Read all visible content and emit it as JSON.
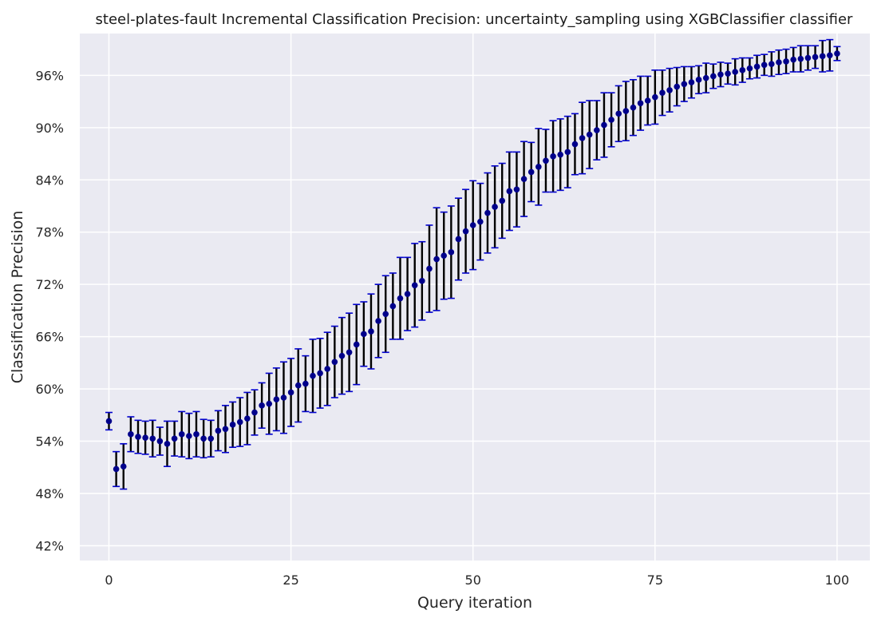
{
  "chart_data": {
    "type": "scatter",
    "title": "steel-plates-fault Incremental Classification Precision: uncertainty_sampling using XGBClassifier classifier",
    "xlabel": "Query iteration",
    "ylabel": "Classification Precision",
    "xlim": [
      -4,
      104.5
    ],
    "ylim": [
      40.3,
      100.8
    ],
    "xticks": [
      0,
      25,
      50,
      75,
      100
    ],
    "yticks": [
      42,
      48,
      54,
      60,
      66,
      72,
      78,
      84,
      90,
      96
    ],
    "ytick_format": "percent",
    "grid": true,
    "colors": {
      "background": "#eaeaf2",
      "grid": "#ffffff",
      "marker": "#00008b",
      "error_bar": "#000000",
      "cap": "#0000cd"
    },
    "series": [
      {
        "name": "precision",
        "x": [
          0,
          1,
          2,
          3,
          4,
          5,
          6,
          7,
          8,
          9,
          10,
          11,
          12,
          13,
          14,
          15,
          16,
          17,
          18,
          19,
          20,
          21,
          22,
          23,
          24,
          25,
          26,
          27,
          28,
          29,
          30,
          31,
          32,
          33,
          34,
          35,
          36,
          37,
          38,
          39,
          40,
          41,
          42,
          43,
          44,
          45,
          46,
          47,
          48,
          49,
          50,
          51,
          52,
          53,
          54,
          55,
          56,
          57,
          58,
          59,
          60,
          61,
          62,
          63,
          64,
          65,
          66,
          67,
          68,
          69,
          70,
          71,
          72,
          73,
          74,
          75,
          76,
          77,
          78,
          79,
          80,
          81,
          82,
          83,
          84,
          85,
          86,
          87,
          88,
          89,
          90,
          91,
          92,
          93,
          94,
          95,
          96,
          97,
          98,
          99,
          100
        ],
        "y": [
          56.3,
          50.8,
          51.1,
          54.8,
          54.5,
          54.4,
          54.3,
          54.0,
          53.7,
          54.3,
          54.8,
          54.6,
          54.8,
          54.3,
          54.3,
          55.2,
          55.4,
          55.9,
          56.2,
          56.6,
          57.3,
          58.1,
          58.3,
          58.8,
          59.0,
          59.6,
          60.4,
          60.6,
          61.5,
          61.8,
          62.3,
          63.1,
          63.8,
          64.2,
          65.1,
          66.3,
          66.6,
          67.8,
          68.6,
          69.5,
          70.4,
          70.9,
          71.9,
          72.4,
          73.8,
          74.9,
          75.3,
          75.7,
          77.2,
          78.1,
          78.8,
          79.2,
          80.2,
          80.9,
          81.6,
          82.7,
          82.9,
          84.1,
          84.9,
          85.5,
          86.2,
          86.7,
          86.9,
          87.2,
          88.1,
          88.8,
          89.2,
          89.7,
          90.3,
          90.9,
          91.6,
          91.9,
          92.3,
          92.8,
          93.1,
          93.5,
          94.0,
          94.3,
          94.7,
          95.0,
          95.2,
          95.5,
          95.7,
          95.9,
          96.1,
          96.2,
          96.4,
          96.6,
          96.8,
          97.0,
          97.2,
          97.3,
          97.5,
          97.6,
          97.8,
          97.9,
          98.0,
          98.1,
          98.2,
          98.3,
          98.5
        ],
        "error": [
          1.0,
          2.0,
          2.6,
          2.0,
          1.9,
          1.9,
          2.1,
          1.6,
          2.6,
          2.0,
          2.6,
          2.6,
          2.6,
          2.2,
          2.1,
          2.3,
          2.7,
          2.6,
          2.8,
          3.0,
          2.6,
          2.6,
          3.5,
          3.6,
          4.1,
          3.9,
          4.2,
          3.2,
          4.2,
          4.0,
          4.2,
          4.1,
          4.4,
          4.5,
          4.6,
          3.7,
          4.3,
          4.2,
          4.4,
          3.8,
          4.7,
          4.2,
          4.8,
          4.5,
          5.0,
          5.9,
          5.0,
          5.3,
          4.7,
          4.8,
          5.1,
          4.4,
          4.6,
          4.7,
          4.3,
          4.5,
          4.3,
          4.3,
          3.4,
          4.4,
          3.6,
          4.1,
          4.1,
          4.1,
          3.5,
          4.1,
          3.9,
          3.4,
          3.7,
          3.1,
          3.2,
          3.4,
          3.2,
          3.1,
          2.8,
          3.1,
          2.6,
          2.5,
          2.2,
          2.0,
          1.8,
          1.6,
          1.7,
          1.4,
          1.4,
          1.2,
          1.5,
          1.4,
          1.2,
          1.3,
          1.2,
          1.4,
          1.4,
          1.4,
          1.4,
          1.5,
          1.4,
          1.3,
          1.8,
          1.8,
          0.8
        ]
      }
    ]
  }
}
